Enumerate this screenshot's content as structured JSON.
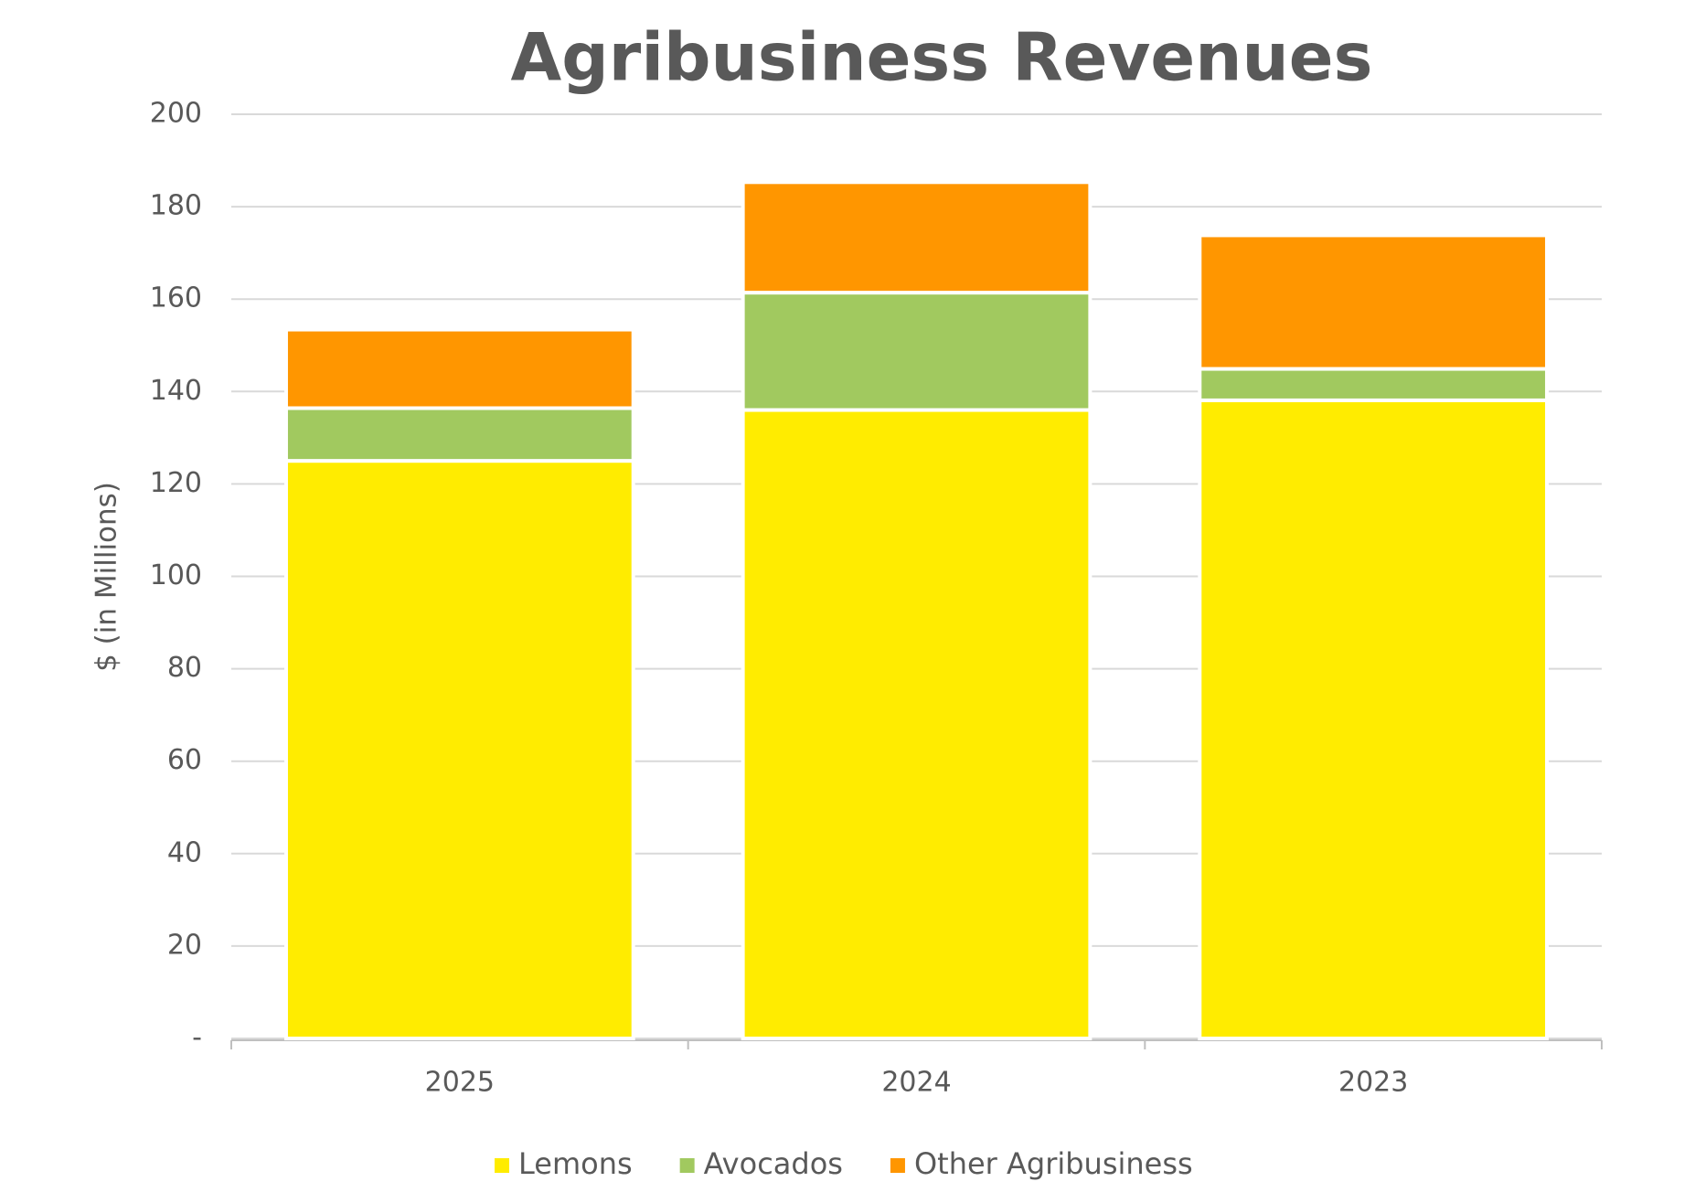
{
  "chart_data": {
    "type": "stacked_bar",
    "title": "Agribusiness Revenues",
    "y_label": "$ (in Millions)",
    "categories": [
      "2025",
      "2024",
      "2023"
    ],
    "series": [
      {
        "name": "Lemons",
        "color": "#ffec00",
        "values": [
          125,
          136,
          138.1
        ]
      },
      {
        "name": "Avocados",
        "color": "#a1c95f",
        "values": [
          11.4,
          25.4,
          6.8
        ]
      },
      {
        "name": "Other Agribusiness",
        "color": "#ff9600",
        "values": [
          17,
          23.9,
          28.9
        ]
      }
    ],
    "ylim": [
      0,
      200
    ],
    "yticks": [
      {
        "value": 0,
        "label": "-"
      },
      20,
      40,
      60,
      80,
      100,
      120,
      140,
      160,
      180,
      200
    ],
    "grid": true,
    "legend": "bottom"
  }
}
